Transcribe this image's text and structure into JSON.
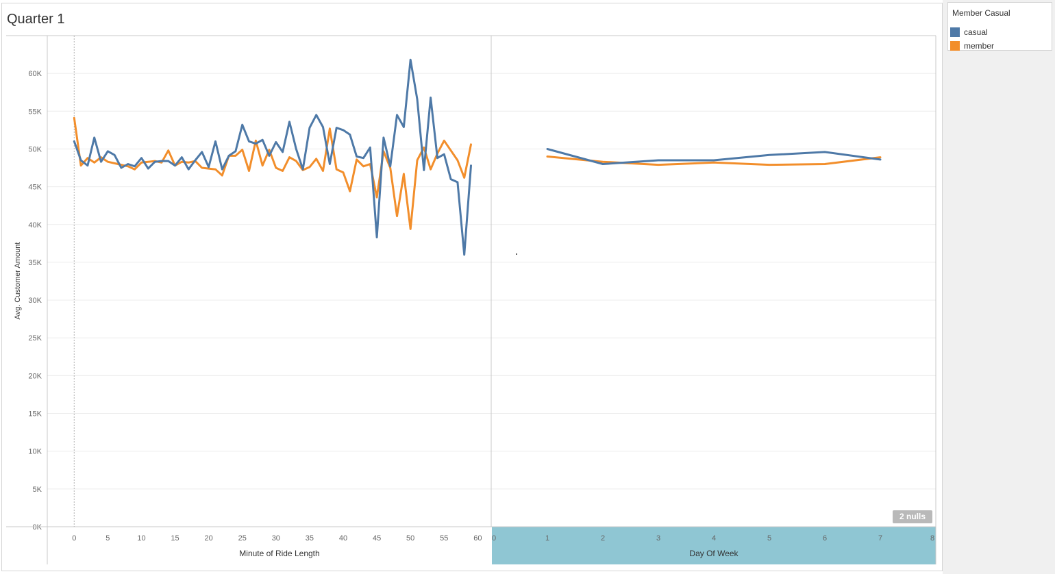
{
  "title": "Quarter 1",
  "legend": {
    "title": "Member Casual",
    "items": [
      {
        "label": "casual",
        "color": "#4e79a7"
      },
      {
        "label": "member",
        "color": "#f28e2b"
      }
    ]
  },
  "nulls_badge": "2 nulls",
  "chart_data": [
    {
      "type": "line",
      "xlabel": "Minute of Ride Length",
      "ylabel": "Avg. Customer Amount",
      "xlim": [
        -4,
        62
      ],
      "ylim": [
        0,
        65000
      ],
      "xticks": [
        "0",
        "5",
        "10",
        "15",
        "20",
        "25",
        "30",
        "35",
        "40",
        "45",
        "50",
        "55",
        "60"
      ],
      "yticks": [
        "0K",
        "5K",
        "10K",
        "15K",
        "20K",
        "25K",
        "30K",
        "35K",
        "40K",
        "45K",
        "50K",
        "55K",
        "60K"
      ],
      "grid": true,
      "x": [
        0,
        1,
        2,
        3,
        4,
        5,
        6,
        7,
        8,
        9,
        10,
        11,
        12,
        13,
        14,
        15,
        16,
        17,
        18,
        19,
        20,
        21,
        22,
        23,
        24,
        25,
        26,
        27,
        28,
        29,
        30,
        31,
        32,
        33,
        34,
        35,
        36,
        37,
        38,
        39,
        40,
        41,
        42,
        43,
        44,
        45,
        46,
        47,
        48,
        49,
        50,
        51,
        52,
        53,
        54,
        55,
        56,
        57,
        58,
        59
      ],
      "series": [
        {
          "name": "casual",
          "values": [
            51000,
            48500,
            47800,
            51500,
            48300,
            49700,
            49200,
            47500,
            48000,
            47700,
            48800,
            47400,
            48300,
            48400,
            48400,
            47800,
            48900,
            47300,
            48500,
            49600,
            47600,
            51000,
            47300,
            49100,
            49700,
            53200,
            51000,
            50700,
            51200,
            49100,
            50900,
            49600,
            53600,
            50000,
            47300,
            52800,
            54500,
            52900,
            48000,
            52800,
            52500,
            51900,
            49000,
            48800,
            50200,
            38300,
            51500,
            47700,
            54500,
            52900,
            61800,
            56600,
            47200,
            56800,
            48800,
            49300,
            46000,
            45600,
            36000,
            47800
          ]
        },
        {
          "name": "member",
          "values": [
            54100,
            47800,
            48800,
            48200,
            48900,
            48300,
            48100,
            47900,
            47700,
            47300,
            48200,
            48300,
            48400,
            48200,
            49800,
            47800,
            48300,
            48200,
            48400,
            47500,
            47400,
            47300,
            46500,
            49100,
            49100,
            49900,
            47100,
            51100,
            47800,
            49900,
            47500,
            47100,
            48900,
            48400,
            47200,
            47600,
            48700,
            47100,
            52700,
            47300,
            46900,
            44400,
            48600,
            47700,
            48000,
            43600,
            49700,
            47500,
            41100,
            46700,
            39400,
            48500,
            50200,
            47300,
            49400,
            51100,
            49800,
            48500,
            46200,
            50600
          ]
        }
      ]
    },
    {
      "type": "line",
      "xlabel": "Day Of Week",
      "xlim": [
        0,
        8
      ],
      "xticks": [
        "0",
        "1",
        "2",
        "3",
        "4",
        "5",
        "6",
        "7",
        "8"
      ],
      "x": [
        1,
        2,
        3,
        4,
        5,
        6,
        7
      ],
      "series": [
        {
          "name": "casual",
          "values": [
            50000,
            48000,
            48500,
            48500,
            49200,
            49600,
            48600
          ]
        },
        {
          "name": "member",
          "values": [
            49000,
            48300,
            47900,
            48200,
            47900,
            48000,
            48900
          ]
        }
      ]
    }
  ]
}
